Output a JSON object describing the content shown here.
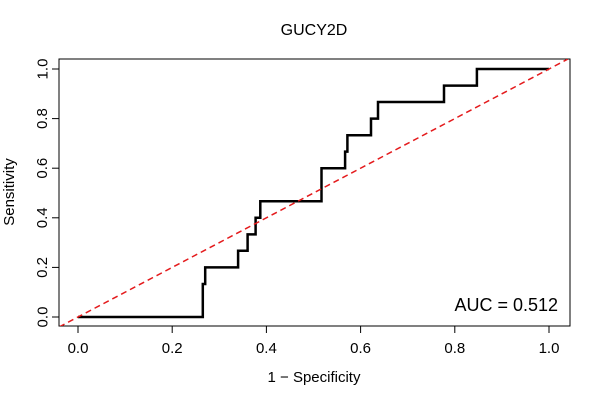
{
  "chart_data": {
    "type": "line",
    "title": "GUCY2D",
    "xlabel": "1 − Specificity",
    "ylabel": "Sensitivity",
    "xlim": [
      0.0,
      1.0
    ],
    "ylim": [
      0.0,
      1.0
    ],
    "x_ticks": [
      "0.0",
      "0.2",
      "0.4",
      "0.6",
      "0.8",
      "1.0"
    ],
    "y_ticks": [
      "0.0",
      "0.2",
      "0.4",
      "0.6",
      "0.8",
      "1.0"
    ],
    "grid": false,
    "legend": "none",
    "annotation": "AUC = 0.512",
    "series": [
      {
        "style": "solid",
        "color": "#000000",
        "x": [
          0.0,
          0.265,
          0.265,
          0.27,
          0.27,
          0.34,
          0.34,
          0.36,
          0.36,
          0.377,
          0.377,
          0.387,
          0.387,
          0.517,
          0.517,
          0.567,
          0.567,
          0.572,
          0.572,
          0.622,
          0.622,
          0.637,
          0.637,
          0.777,
          0.777,
          0.847,
          0.847,
          1.0
        ],
        "y": [
          0.0,
          0.0,
          0.133,
          0.133,
          0.2,
          0.2,
          0.267,
          0.267,
          0.333,
          0.333,
          0.4,
          0.4,
          0.467,
          0.467,
          0.6,
          0.6,
          0.667,
          0.667,
          0.733,
          0.733,
          0.8,
          0.8,
          0.867,
          0.867,
          0.933,
          0.933,
          1.0,
          1.0
        ]
      },
      {
        "style": "dashed",
        "color": "#e41a1c",
        "x": [
          -0.04,
          1.04
        ],
        "y": [
          -0.04,
          1.04
        ]
      }
    ]
  }
}
